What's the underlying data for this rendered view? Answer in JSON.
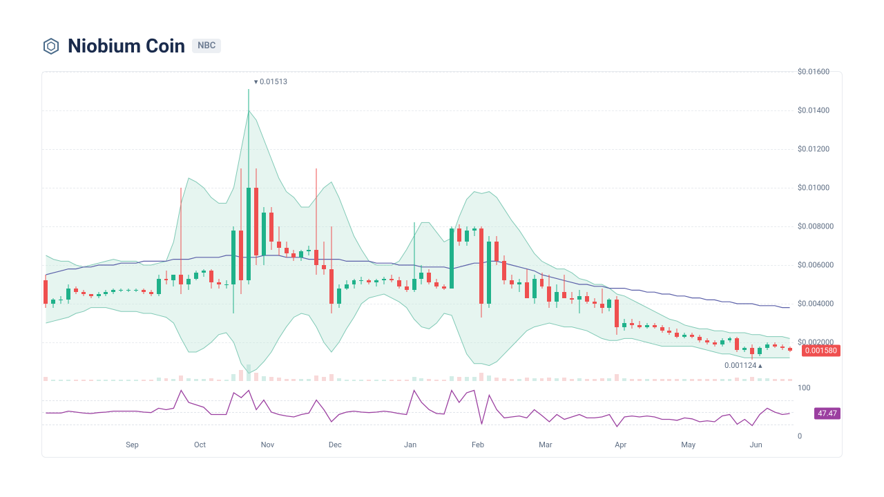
{
  "header": {
    "title": "Niobium Coin",
    "ticker": "NBC",
    "logo_color": "#4a6b8a"
  },
  "chart": {
    "type": "candlestick",
    "background_color": "#ffffff",
    "border_color": "#e8ebef",
    "grid_color": "#e8ebef",
    "text_color": "#5a6a80",
    "y_axis": {
      "min": 0,
      "max": 0.016,
      "ticks": [
        0.002,
        0.004,
        0.006,
        0.008,
        0.01,
        0.012,
        0.014,
        0.016
      ],
      "tick_labels": [
        "$0.002000",
        "$0.004000",
        "$0.006000",
        "$0.008000",
        "$0.01000",
        "$0.01200",
        "$0.01400",
        "$0.01600"
      ],
      "label_fontsize": 11
    },
    "x_axis": {
      "labels": [
        "Sep",
        "Oct",
        "Nov",
        "Dec",
        "Jan",
        "Feb",
        "Mar",
        "Apr",
        "May",
        "Jun"
      ],
      "positions": [
        12,
        21,
        30,
        39,
        49,
        58,
        67,
        77,
        86,
        95
      ]
    },
    "colors": {
      "up": "#1fb18a",
      "down": "#ef4f4f",
      "ma_line": "#5a5fa8",
      "bb_fill": "#c8e8de",
      "bb_line": "#7fc9b5",
      "bb_fill_opacity": 0.45
    },
    "annotations": {
      "high": {
        "label": "0.01513",
        "x": 30,
        "y_price": 0.01513,
        "arrow": "▾"
      },
      "low": {
        "label": "0.001124",
        "x": 94,
        "y_price": 0.001124,
        "arrow": "▴"
      },
      "current_price": {
        "label": "0.001580",
        "price": 0.00158,
        "bg": "#ef4f4f"
      }
    },
    "bb_upper": [
      0.0065,
      0.0063,
      0.0062,
      0.0062,
      0.006,
      0.0059,
      0.006,
      0.0061,
      0.0062,
      0.0063,
      0.0062,
      0.0062,
      0.0062,
      0.006,
      0.006,
      0.0061,
      0.0062,
      0.0072,
      0.0092,
      0.0105,
      0.0103,
      0.01,
      0.0095,
      0.0092,
      0.0092,
      0.01,
      0.012,
      0.014,
      0.0135,
      0.0125,
      0.0115,
      0.0105,
      0.0098,
      0.0095,
      0.009,
      0.009,
      0.0095,
      0.01,
      0.0103,
      0.0095,
      0.0085,
      0.0075,
      0.0068,
      0.0062,
      0.006,
      0.006,
      0.006,
      0.0062,
      0.0068,
      0.0075,
      0.0082,
      0.0082,
      0.0077,
      0.0072,
      0.0074,
      0.0085,
      0.0094,
      0.0098,
      0.0097,
      0.0098,
      0.0095,
      0.0089,
      0.0083,
      0.0078,
      0.0072,
      0.0066,
      0.0062,
      0.006,
      0.0058,
      0.0058,
      0.0056,
      0.0053,
      0.0052,
      0.005,
      0.005,
      0.0048,
      0.0045,
      0.0044,
      0.0042,
      0.004,
      0.0038,
      0.0036,
      0.0034,
      0.0032,
      0.0031,
      0.0029,
      0.0028,
      0.0027,
      0.0027,
      0.0026,
      0.0026,
      0.0025,
      0.0025,
      0.0025,
      0.0024,
      0.0024,
      0.0023,
      0.0023,
      0.0023,
      0.0022
    ],
    "bb_lower": [
      0.003,
      0.0031,
      0.0032,
      0.0033,
      0.0035,
      0.0036,
      0.0038,
      0.0038,
      0.0038,
      0.0037,
      0.0036,
      0.0036,
      0.0036,
      0.0035,
      0.0035,
      0.0034,
      0.0033,
      0.003,
      0.0022,
      0.0015,
      0.0015,
      0.0017,
      0.002,
      0.0024,
      0.0025,
      0.002,
      0.0009,
      0.0004,
      0.0006,
      0.001,
      0.0015,
      0.0022,
      0.0028,
      0.0033,
      0.0035,
      0.0034,
      0.0028,
      0.002,
      0.0015,
      0.002,
      0.0027,
      0.0033,
      0.004,
      0.0043,
      0.0044,
      0.0045,
      0.0043,
      0.0041,
      0.0038,
      0.0032,
      0.0028,
      0.0027,
      0.003,
      0.0035,
      0.0034,
      0.0024,
      0.0014,
      0.0009,
      0.0009,
      0.0008,
      0.001,
      0.0014,
      0.0018,
      0.0022,
      0.0026,
      0.0028,
      0.0029,
      0.003,
      0.0029,
      0.0028,
      0.0028,
      0.0027,
      0.0026,
      0.0024,
      0.0022,
      0.0021,
      0.0021,
      0.0022,
      0.0022,
      0.0021,
      0.002,
      0.0019,
      0.0018,
      0.0018,
      0.0018,
      0.0018,
      0.0018,
      0.0017,
      0.0016,
      0.0015,
      0.0014,
      0.0014,
      0.0013,
      0.0012,
      0.0012,
      0.0012,
      0.0012,
      0.0012,
      0.0012,
      0.0012
    ],
    "ma_line": [
      0.0055,
      0.0056,
      0.0057,
      0.0058,
      0.0058,
      0.0059,
      0.0059,
      0.006,
      0.006,
      0.006,
      0.0061,
      0.0061,
      0.0061,
      0.0062,
      0.0062,
      0.0062,
      0.0062,
      0.0063,
      0.0063,
      0.0063,
      0.0064,
      0.0064,
      0.0064,
      0.0064,
      0.0065,
      0.0065,
      0.0064,
      0.0064,
      0.0064,
      0.0065,
      0.0065,
      0.0065,
      0.0064,
      0.0064,
      0.0064,
      0.0063,
      0.0063,
      0.0063,
      0.0063,
      0.0063,
      0.0062,
      0.0062,
      0.0062,
      0.0062,
      0.0061,
      0.0061,
      0.0061,
      0.006,
      0.006,
      0.006,
      0.0059,
      0.0059,
      0.0059,
      0.0059,
      0.0058,
      0.0059,
      0.006,
      0.0061,
      0.0061,
      0.0062,
      0.0062,
      0.0061,
      0.006,
      0.0059,
      0.0058,
      0.0057,
      0.0055,
      0.0054,
      0.0053,
      0.0052,
      0.0051,
      0.005,
      0.005,
      0.0049,
      0.0049,
      0.0048,
      0.0048,
      0.0048,
      0.0047,
      0.0047,
      0.0046,
      0.0046,
      0.0045,
      0.0045,
      0.0044,
      0.0044,
      0.0043,
      0.0043,
      0.0042,
      0.0042,
      0.0041,
      0.0041,
      0.004,
      0.004,
      0.004,
      0.0039,
      0.0039,
      0.0039,
      0.0038,
      0.0038
    ],
    "candles": [
      {
        "o": 0.0052,
        "h": 0.0055,
        "l": 0.0038,
        "c": 0.004
      },
      {
        "o": 0.004,
        "h": 0.0043,
        "l": 0.0038,
        "c": 0.0042
      },
      {
        "o": 0.0042,
        "h": 0.0044,
        "l": 0.004,
        "c": 0.0042
      },
      {
        "o": 0.0042,
        "h": 0.005,
        "l": 0.004,
        "c": 0.0048
      },
      {
        "o": 0.0048,
        "h": 0.0049,
        "l": 0.0045,
        "c": 0.0046
      },
      {
        "o": 0.0046,
        "h": 0.0047,
        "l": 0.0044,
        "c": 0.0045
      },
      {
        "o": 0.0045,
        "h": 0.0045,
        "l": 0.0043,
        "c": 0.0044
      },
      {
        "o": 0.0044,
        "h": 0.0046,
        "l": 0.0043,
        "c": 0.0045
      },
      {
        "o": 0.0045,
        "h": 0.0047,
        "l": 0.0044,
        "c": 0.0046
      },
      {
        "o": 0.0046,
        "h": 0.0048,
        "l": 0.0045,
        "c": 0.0047
      },
      {
        "o": 0.0047,
        "h": 0.0048,
        "l": 0.0046,
        "c": 0.0047
      },
      {
        "o": 0.0047,
        "h": 0.0048,
        "l": 0.0046,
        "c": 0.0047
      },
      {
        "o": 0.0047,
        "h": 0.0048,
        "l": 0.0046,
        "c": 0.0047
      },
      {
        "o": 0.0047,
        "h": 0.0048,
        "l": 0.0045,
        "c": 0.0046
      },
      {
        "o": 0.0046,
        "h": 0.0047,
        "l": 0.0044,
        "c": 0.0045
      },
      {
        "o": 0.0045,
        "h": 0.0055,
        "l": 0.0044,
        "c": 0.0053
      },
      {
        "o": 0.0053,
        "h": 0.0057,
        "l": 0.005,
        "c": 0.0052
      },
      {
        "o": 0.0052,
        "h": 0.0055,
        "l": 0.0049,
        "c": 0.0055
      },
      {
        "o": 0.0055,
        "h": 0.01,
        "l": 0.0045,
        "c": 0.005
      },
      {
        "o": 0.005,
        "h": 0.0055,
        "l": 0.0047,
        "c": 0.0053
      },
      {
        "o": 0.0053,
        "h": 0.0057,
        "l": 0.0052,
        "c": 0.0056
      },
      {
        "o": 0.0056,
        "h": 0.0058,
        "l": 0.0054,
        "c": 0.0057
      },
      {
        "o": 0.0057,
        "h": 0.0058,
        "l": 0.0048,
        "c": 0.0051
      },
      {
        "o": 0.0051,
        "h": 0.0053,
        "l": 0.0048,
        "c": 0.005
      },
      {
        "o": 0.005,
        "h": 0.0052,
        "l": 0.0048,
        "c": 0.005
      },
      {
        "o": 0.005,
        "h": 0.008,
        "l": 0.0035,
        "c": 0.0078
      },
      {
        "o": 0.0078,
        "h": 0.011,
        "l": 0.0045,
        "c": 0.0052
      },
      {
        "o": 0.0052,
        "h": 0.0151,
        "l": 0.005,
        "c": 0.01
      },
      {
        "o": 0.01,
        "h": 0.011,
        "l": 0.006,
        "c": 0.0065
      },
      {
        "o": 0.0065,
        "h": 0.009,
        "l": 0.006,
        "c": 0.0087
      },
      {
        "o": 0.0087,
        "h": 0.009,
        "l": 0.0068,
        "c": 0.0072
      },
      {
        "o": 0.0072,
        "h": 0.008,
        "l": 0.0065,
        "c": 0.0069
      },
      {
        "o": 0.0069,
        "h": 0.0072,
        "l": 0.0064,
        "c": 0.0066
      },
      {
        "o": 0.0066,
        "h": 0.0068,
        "l": 0.0062,
        "c": 0.0064
      },
      {
        "o": 0.0064,
        "h": 0.0068,
        "l": 0.0062,
        "c": 0.0067
      },
      {
        "o": 0.0067,
        "h": 0.007,
        "l": 0.0065,
        "c": 0.0068
      },
      {
        "o": 0.0068,
        "h": 0.011,
        "l": 0.0055,
        "c": 0.006
      },
      {
        "o": 0.006,
        "h": 0.0072,
        "l": 0.0055,
        "c": 0.0058
      },
      {
        "o": 0.0058,
        "h": 0.008,
        "l": 0.0035,
        "c": 0.004
      },
      {
        "o": 0.004,
        "h": 0.005,
        "l": 0.0038,
        "c": 0.0048
      },
      {
        "o": 0.0048,
        "h": 0.0052,
        "l": 0.0047,
        "c": 0.005
      },
      {
        "o": 0.005,
        "h": 0.0053,
        "l": 0.0048,
        "c": 0.0052
      },
      {
        "o": 0.0052,
        "h": 0.0054,
        "l": 0.005,
        "c": 0.0052
      },
      {
        "o": 0.0052,
        "h": 0.0053,
        "l": 0.005,
        "c": 0.0051
      },
      {
        "o": 0.0051,
        "h": 0.0053,
        "l": 0.0049,
        "c": 0.0052
      },
      {
        "o": 0.0052,
        "h": 0.0054,
        "l": 0.005,
        "c": 0.0053
      },
      {
        "o": 0.0053,
        "h": 0.0055,
        "l": 0.0051,
        "c": 0.0052
      },
      {
        "o": 0.0052,
        "h": 0.0054,
        "l": 0.0048,
        "c": 0.0049
      },
      {
        "o": 0.0049,
        "h": 0.0052,
        "l": 0.0046,
        "c": 0.0047
      },
      {
        "o": 0.0047,
        "h": 0.0082,
        "l": 0.0046,
        "c": 0.0053
      },
      {
        "o": 0.0053,
        "h": 0.006,
        "l": 0.005,
        "c": 0.0056
      },
      {
        "o": 0.0056,
        "h": 0.0058,
        "l": 0.005,
        "c": 0.0051
      },
      {
        "o": 0.0051,
        "h": 0.0053,
        "l": 0.0048,
        "c": 0.0049
      },
      {
        "o": 0.0049,
        "h": 0.005,
        "l": 0.0047,
        "c": 0.0048
      },
      {
        "o": 0.0048,
        "h": 0.008,
        "l": 0.0048,
        "c": 0.0079
      },
      {
        "o": 0.0079,
        "h": 0.0081,
        "l": 0.007,
        "c": 0.0072
      },
      {
        "o": 0.0072,
        "h": 0.008,
        "l": 0.007,
        "c": 0.0078
      },
      {
        "o": 0.0078,
        "h": 0.008,
        "l": 0.0075,
        "c": 0.0079
      },
      {
        "o": 0.0079,
        "h": 0.008,
        "l": 0.0033,
        "c": 0.004
      },
      {
        "o": 0.004,
        "h": 0.0075,
        "l": 0.0038,
        "c": 0.0072
      },
      {
        "o": 0.0072,
        "h": 0.0075,
        "l": 0.006,
        "c": 0.0062
      },
      {
        "o": 0.0062,
        "h": 0.0065,
        "l": 0.005,
        "c": 0.0052
      },
      {
        "o": 0.0052,
        "h": 0.0055,
        "l": 0.0048,
        "c": 0.005
      },
      {
        "o": 0.005,
        "h": 0.0053,
        "l": 0.0046,
        "c": 0.0051
      },
      {
        "o": 0.0051,
        "h": 0.0058,
        "l": 0.0048,
        "c": 0.0043
      },
      {
        "o": 0.0043,
        "h": 0.0055,
        "l": 0.004,
        "c": 0.0053
      },
      {
        "o": 0.0053,
        "h": 0.0056,
        "l": 0.0048,
        "c": 0.0049
      },
      {
        "o": 0.0049,
        "h": 0.0055,
        "l": 0.0038,
        "c": 0.0041
      },
      {
        "o": 0.0041,
        "h": 0.005,
        "l": 0.0038,
        "c": 0.0046
      },
      {
        "o": 0.0046,
        "h": 0.0055,
        "l": 0.0043,
        "c": 0.0043
      },
      {
        "o": 0.0043,
        "h": 0.0046,
        "l": 0.004,
        "c": 0.0042
      },
      {
        "o": 0.0042,
        "h": 0.0047,
        "l": 0.0035,
        "c": 0.0044
      },
      {
        "o": 0.0044,
        "h": 0.0046,
        "l": 0.004,
        "c": 0.0041
      },
      {
        "o": 0.0041,
        "h": 0.0043,
        "l": 0.0038,
        "c": 0.004
      },
      {
        "o": 0.004,
        "h": 0.0048,
        "l": 0.0035,
        "c": 0.0038
      },
      {
        "o": 0.0038,
        "h": 0.0043,
        "l": 0.0036,
        "c": 0.0042
      },
      {
        "o": 0.0042,
        "h": 0.0044,
        "l": 0.0024,
        "c": 0.0028
      },
      {
        "o": 0.0028,
        "h": 0.0032,
        "l": 0.0026,
        "c": 0.003
      },
      {
        "o": 0.003,
        "h": 0.0032,
        "l": 0.0027,
        "c": 0.0029
      },
      {
        "o": 0.0029,
        "h": 0.0031,
        "l": 0.0027,
        "c": 0.0028
      },
      {
        "o": 0.0028,
        "h": 0.003,
        "l": 0.0027,
        "c": 0.0029
      },
      {
        "o": 0.0029,
        "h": 0.003,
        "l": 0.0027,
        "c": 0.0028
      },
      {
        "o": 0.0028,
        "h": 0.0029,
        "l": 0.0025,
        "c": 0.0026
      },
      {
        "o": 0.0026,
        "h": 0.0028,
        "l": 0.0024,
        "c": 0.0025
      },
      {
        "o": 0.0025,
        "h": 0.0027,
        "l": 0.0022,
        "c": 0.0023
      },
      {
        "o": 0.0023,
        "h": 0.0025,
        "l": 0.0022,
        "c": 0.0024
      },
      {
        "o": 0.0024,
        "h": 0.0025,
        "l": 0.0022,
        "c": 0.0023
      },
      {
        "o": 0.0023,
        "h": 0.0024,
        "l": 0.002,
        "c": 0.0021
      },
      {
        "o": 0.0021,
        "h": 0.0022,
        "l": 0.0019,
        "c": 0.002
      },
      {
        "o": 0.002,
        "h": 0.0021,
        "l": 0.0018,
        "c": 0.0019
      },
      {
        "o": 0.0019,
        "h": 0.0022,
        "l": 0.0018,
        "c": 0.0021
      },
      {
        "o": 0.0021,
        "h": 0.0023,
        "l": 0.002,
        "c": 0.0022
      },
      {
        "o": 0.0022,
        "h": 0.0023,
        "l": 0.0015,
        "c": 0.0016
      },
      {
        "o": 0.0016,
        "h": 0.0018,
        "l": 0.0015,
        "c": 0.0017
      },
      {
        "o": 0.0017,
        "h": 0.0019,
        "l": 0.0011,
        "c": 0.0014
      },
      {
        "o": 0.0014,
        "h": 0.0018,
        "l": 0.0013,
        "c": 0.0017
      },
      {
        "o": 0.0017,
        "h": 0.002,
        "l": 0.0016,
        "c": 0.0019
      },
      {
        "o": 0.0019,
        "h": 0.002,
        "l": 0.0017,
        "c": 0.0018
      },
      {
        "o": 0.0018,
        "h": 0.0019,
        "l": 0.0016,
        "c": 0.0017
      },
      {
        "o": 0.0017,
        "h": 0.0018,
        "l": 0.0015,
        "c": 0.00158
      }
    ],
    "volume": [
      8,
      3,
      2,
      3,
      2,
      2,
      2,
      2,
      2,
      2,
      2,
      2,
      2,
      2,
      2,
      6,
      5,
      4,
      10,
      5,
      4,
      4,
      5,
      3,
      3,
      12,
      20,
      30,
      15,
      9,
      7,
      6,
      4,
      4,
      4,
      4,
      10,
      7,
      12,
      5,
      3,
      3,
      3,
      3,
      3,
      3,
      3,
      3,
      3,
      8,
      5,
      4,
      3,
      3,
      9,
      7,
      8,
      8,
      15,
      10,
      6,
      5,
      4,
      4,
      6,
      5,
      5,
      6,
      5,
      6,
      4,
      5,
      4,
      4,
      5,
      5,
      12,
      5,
      4,
      4,
      4,
      4,
      4,
      4,
      4,
      4,
      4,
      4,
      4,
      4,
      4,
      4,
      6,
      4,
      8,
      5,
      5,
      4,
      4,
      4
    ],
    "volume_max": 50,
    "volume_color": "#a8dccf"
  },
  "indicator": {
    "type": "rsi",
    "color": "#9b3fa0",
    "grid_color": "#e0e4ea",
    "y_ticks": [
      0,
      100
    ],
    "y_tick_labels": [
      "0",
      "100"
    ],
    "current": {
      "label": "47.47",
      "value": 47.47,
      "bg": "#9b3fa0"
    },
    "values": [
      48,
      48,
      48,
      52,
      50,
      48,
      47,
      49,
      50,
      52,
      52,
      52,
      52,
      50,
      49,
      58,
      55,
      58,
      95,
      70,
      65,
      60,
      45,
      45,
      45,
      90,
      80,
      95,
      55,
      75,
      50,
      45,
      42,
      40,
      45,
      48,
      75,
      55,
      30,
      45,
      50,
      52,
      50,
      49,
      50,
      52,
      50,
      47,
      45,
      95,
      70,
      55,
      47,
      46,
      95,
      70,
      90,
      95,
      25,
      85,
      55,
      38,
      40,
      42,
      38,
      55,
      43,
      30,
      45,
      35,
      40,
      45,
      38,
      38,
      40,
      45,
      20,
      40,
      42,
      40,
      42,
      40,
      35,
      35,
      33,
      38,
      36,
      30,
      32,
      30,
      42,
      45,
      25,
      35,
      22,
      45,
      58,
      50,
      45,
      47
    ]
  }
}
